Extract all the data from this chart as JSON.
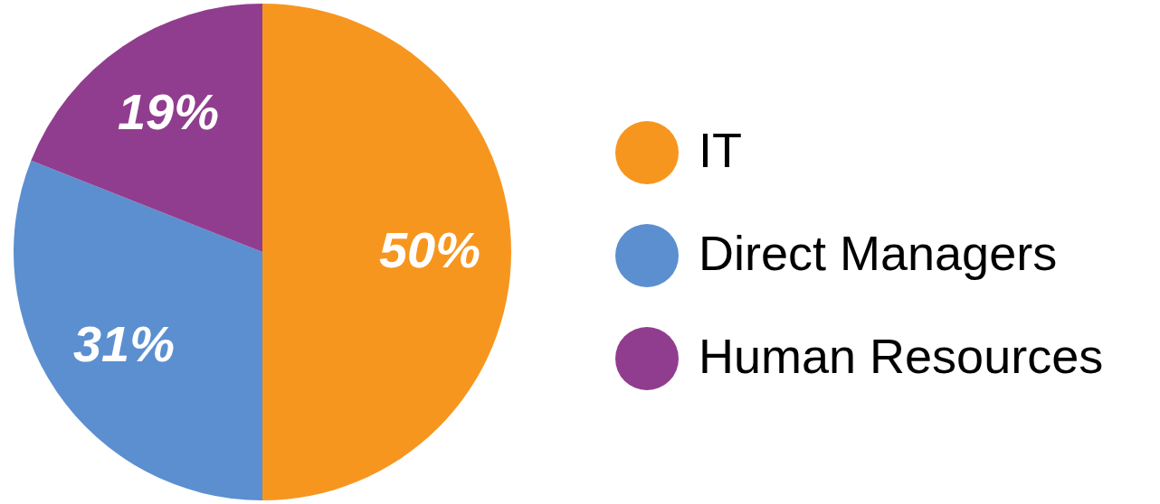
{
  "chart_data": {
    "type": "pie",
    "categories": [
      "IT",
      "Direct Managers",
      "Human Resources"
    ],
    "values": [
      50,
      31,
      19
    ],
    "colors": [
      "#f7961f",
      "#5b8fd0",
      "#913d8f"
    ],
    "value_labels": [
      "50%",
      "31%",
      "19%"
    ],
    "legend": "right"
  }
}
